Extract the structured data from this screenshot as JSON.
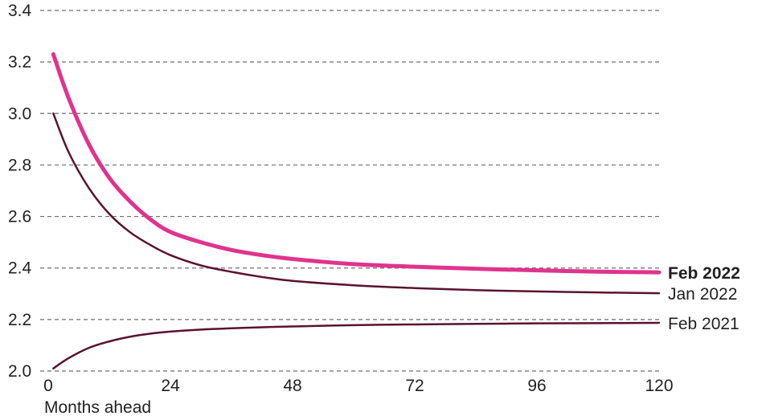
{
  "chart_data": {
    "type": "line",
    "title": "",
    "xlabel": "Months ahead",
    "ylabel": "",
    "xlim": [
      0,
      120
    ],
    "ylim": [
      2.0,
      3.4
    ],
    "x_ticks": [
      0,
      24,
      48,
      72,
      96,
      120
    ],
    "x_tick_labels": [
      "0",
      "24",
      "48",
      "72",
      "96",
      "120"
    ],
    "y_ticks": [
      2.0,
      2.2,
      2.4,
      2.6,
      2.8,
      3.0,
      3.2,
      3.4
    ],
    "y_tick_labels": [
      "2.0",
      "2.2",
      "2.4",
      "2.6",
      "2.8",
      "3.0",
      "3.2",
      "3.4"
    ],
    "grid": "horizontal dashed",
    "legend": "direct labels at right end of lines",
    "series": [
      {
        "name": "Feb 2022",
        "color": "#e0338e",
        "emphasis": true,
        "x": [
          1,
          4,
          8,
          12,
          16,
          20,
          24,
          30,
          36,
          42,
          48,
          60,
          72,
          84,
          96,
          108,
          120
        ],
        "values": [
          3.23,
          3.06,
          2.88,
          2.75,
          2.66,
          2.59,
          2.54,
          2.5,
          2.47,
          2.45,
          2.435,
          2.415,
          2.405,
          2.397,
          2.391,
          2.386,
          2.383
        ]
      },
      {
        "name": "Jan 2022",
        "color": "#5a1230",
        "emphasis": false,
        "x": [
          1,
          4,
          8,
          12,
          16,
          20,
          24,
          30,
          36,
          42,
          48,
          60,
          72,
          84,
          96,
          108,
          120
        ],
        "values": [
          3.0,
          2.85,
          2.71,
          2.61,
          2.54,
          2.49,
          2.45,
          2.41,
          2.385,
          2.365,
          2.35,
          2.333,
          2.322,
          2.314,
          2.309,
          2.305,
          2.302
        ]
      },
      {
        "name": "Feb 2021",
        "color": "#5a1230",
        "emphasis": false,
        "x": [
          1,
          4,
          8,
          12,
          16,
          20,
          24,
          30,
          36,
          42,
          48,
          60,
          72,
          84,
          96,
          108,
          120
        ],
        "values": [
          2.01,
          2.05,
          2.09,
          2.115,
          2.133,
          2.145,
          2.153,
          2.161,
          2.166,
          2.17,
          2.173,
          2.178,
          2.181,
          2.183,
          2.185,
          2.186,
          2.187
        ]
      }
    ]
  }
}
